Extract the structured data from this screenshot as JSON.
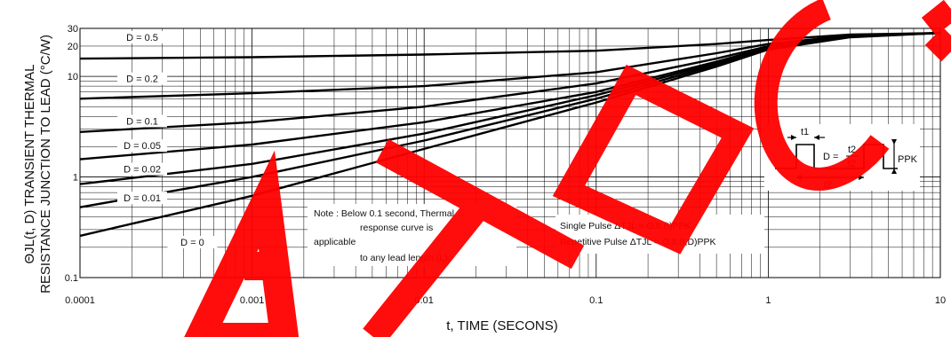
{
  "chart_data": {
    "type": "line",
    "xlabel": "t,  TIME (SECONS)",
    "ylabel_line1": "ΘJL(t, D) TRANSIENT THERMAL",
    "ylabel_line2": "RESISTANCE JUNCTION TO LEAD (°C/W)",
    "x_scale": "log",
    "y_scale": "log",
    "xlim": [
      0.0001,
      10
    ],
    "ylim": [
      0.1,
      30
    ],
    "grid": true,
    "x_ticks": [
      {
        "value": 0.0001,
        "label": "0.0001"
      },
      {
        "value": 0.001,
        "label": "0.001"
      },
      {
        "value": 0.01,
        "label": "0.01"
      },
      {
        "value": 0.1,
        "label": "0.1"
      },
      {
        "value": 1,
        "label": "1"
      },
      {
        "value": 10,
        "label": "10"
      }
    ],
    "y_ticks": [
      {
        "value": 0.1,
        "label": "0.1"
      },
      {
        "value": 1,
        "label": "1"
      },
      {
        "value": 10,
        "label": "10"
      },
      {
        "value": 20,
        "label": "20"
      },
      {
        "value": 30,
        "label": "30"
      }
    ],
    "series": [
      {
        "name": "D = 0.5",
        "x": [
          0.0001,
          0.001,
          0.01,
          0.1,
          0.5,
          1,
          3,
          10
        ],
        "y": [
          15,
          15.5,
          16.5,
          18,
          21,
          23,
          26,
          27
        ]
      },
      {
        "name": "D = 0.2",
        "x": [
          0.0001,
          0.001,
          0.01,
          0.1,
          0.5,
          1,
          3,
          10
        ],
        "y": [
          6,
          6.8,
          8,
          11,
          17,
          21,
          25.5,
          27
        ]
      },
      {
        "name": "D = 0.1",
        "x": [
          0.0001,
          0.001,
          0.01,
          0.1,
          0.5,
          1,
          3,
          10
        ],
        "y": [
          2.8,
          3.5,
          5,
          8.5,
          15,
          20,
          25,
          27
        ]
      },
      {
        "name": "D = 0.05",
        "x": [
          0.0001,
          0.001,
          0.01,
          0.1,
          0.5,
          1,
          3,
          10
        ],
        "y": [
          1.5,
          2.1,
          3.5,
          7,
          14,
          19.5,
          25,
          27
        ]
      },
      {
        "name": "D = 0.02",
        "x": [
          0.0001,
          0.001,
          0.01,
          0.1,
          0.5,
          1,
          3,
          10
        ],
        "y": [
          0.85,
          1.35,
          2.7,
          6.5,
          13.5,
          19,
          25,
          27
        ]
      },
      {
        "name": "D = 0.01",
        "x": [
          0.0001,
          0.001,
          0.01,
          0.1,
          0.5,
          1,
          3,
          10
        ],
        "y": [
          0.5,
          1.0,
          2.3,
          6,
          13,
          19,
          25,
          27
        ]
      },
      {
        "name": "D = 0",
        "x": [
          0.0001,
          0.001,
          0.01,
          0.1,
          0.5,
          1,
          3,
          10
        ],
        "y": [
          0.26,
          0.65,
          1.9,
          5.5,
          12.5,
          18.5,
          24.5,
          27
        ]
      }
    ],
    "note": {
      "line1": "Note : Below 0.1 second, Thermal",
      "line2": "response curve is",
      "line3": "applicable",
      "line4": "to any lead length (L)."
    },
    "pulse_text": {
      "single": "Single Pulse  ΔTJL = ΘJL(t)PPK",
      "repetitive": "Repetitive Pulse ΔTJL = ΘJL(t,D)PPK"
    },
    "waveform_labels": {
      "t1": "t1",
      "d_eq": "D =",
      "num": "t2",
      "den": "t2",
      "t2": "t2",
      "ppk": "PPK"
    },
    "watermark": "DATECH"
  }
}
